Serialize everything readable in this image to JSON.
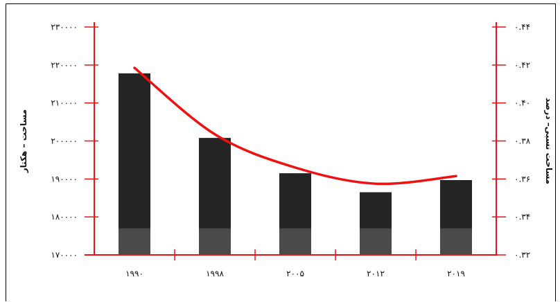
{
  "chart_data": {
    "type": "bar",
    "categories": [
      "۱۹۹۰",
      "۱۹۹۸",
      "۲۰۰۵",
      "۲۰۱۲",
      "۲۰۱۹"
    ],
    "series": [
      {
        "values": [
          217800,
          200800,
          191500,
          186500,
          189700
        ],
        "axis": "left",
        "type": "bar",
        "color": "#242424"
      },
      {
        "values": [
          0.4185,
          0.3835,
          0.366,
          0.3575,
          0.3615
        ],
        "axis": "right",
        "type": "line",
        "smooth": true,
        "color": "#ee1111"
      }
    ],
    "ylabel": "مساحت – هکتار",
    "y2label": "مساحت نسبی– درصد",
    "ylim": [
      170000,
      230000
    ],
    "y2lim": [
      0.32,
      0.44
    ],
    "yticks": [
      170000,
      180000,
      190000,
      200000,
      210000,
      220000,
      230000
    ],
    "yticklabels": [
      "۱۷۰۰۰۰",
      "۱۸۰۰۰۰",
      "۱۹۰۰۰۰",
      "۲۰۰۰۰۰",
      "۲۱۰۰۰۰",
      "۲۲۰۰۰۰",
      "۲۳۰۰۰۰"
    ],
    "y2ticks": [
      0.32,
      0.34,
      0.36,
      0.38,
      0.4,
      0.42,
      0.44
    ],
    "y2ticklabels": [
      "۰.۳۲",
      "۰.۳۴",
      "۰.۳۶",
      "۰.۳۸",
      "۰.۴۰",
      "۰.۴۲",
      "۰.۴۴"
    ],
    "axis_color": "#ee1111",
    "bar_shadow_color": "#4a4a4a",
    "bar_shadow_top": 177000,
    "grid": false,
    "legend": "none"
  }
}
